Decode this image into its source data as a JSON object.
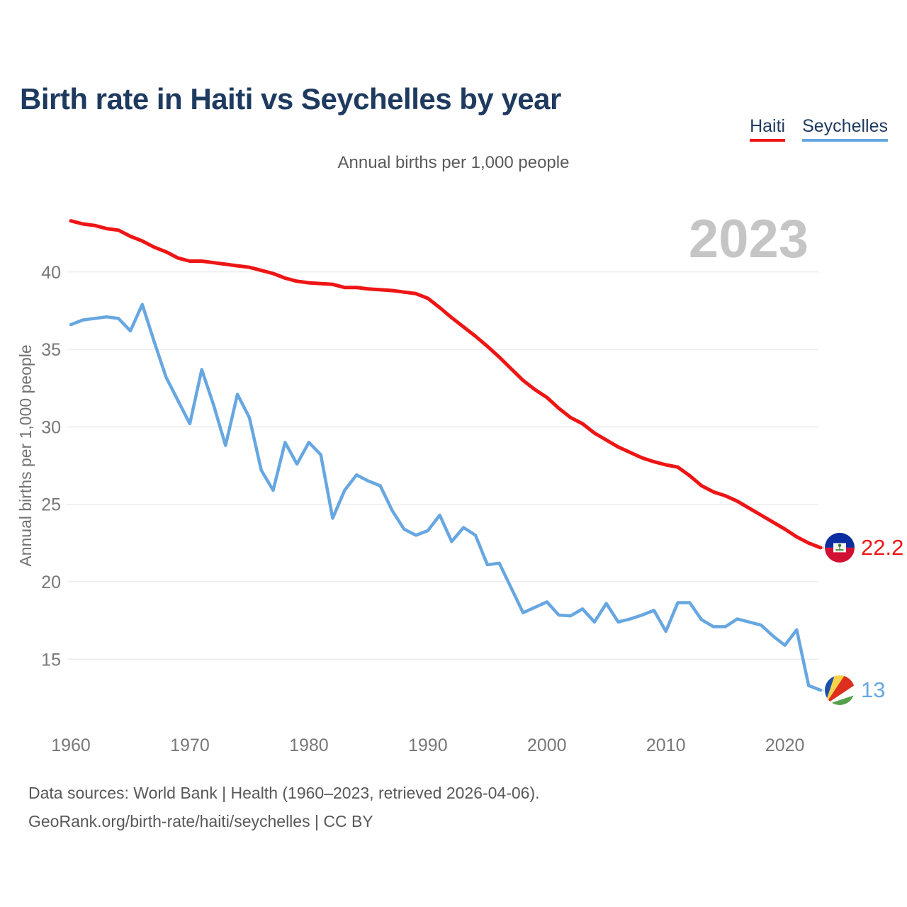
{
  "page": {
    "title": "Birth rate in Haiti vs Seychelles by year",
    "subtitle": "Annual births per 1,000 people",
    "watermark": "2023",
    "footer_line1": "Data sources: World Bank | Health (1960–2023, retrieved 2026-04-06).",
    "footer_line2": "GeoRank.org/birth-rate/haiti/seychelles | CC BY"
  },
  "legend": {
    "items": [
      {
        "label": "Haiti",
        "color": "#ee1515"
      },
      {
        "label": "Seychelles",
        "color": "#67a7e1"
      }
    ]
  },
  "chart_data": {
    "type": "line",
    "title": "Birth rate in Haiti vs Seychelles by year",
    "ylabel": "Annual births per 1,000 people",
    "xlabel": "",
    "xlim": [
      1960,
      2023
    ],
    "ylim": [
      12,
      44
    ],
    "x_ticks": [
      1960,
      1970,
      1980,
      1990,
      2000,
      2010,
      2020
    ],
    "y_ticks": [
      15,
      20,
      25,
      30,
      35,
      40
    ],
    "grid": "horizontal",
    "legend_position": "top-right",
    "x": [
      1960,
      1961,
      1962,
      1963,
      1964,
      1965,
      1966,
      1967,
      1968,
      1969,
      1970,
      1971,
      1972,
      1973,
      1974,
      1975,
      1976,
      1977,
      1978,
      1979,
      1980,
      1981,
      1982,
      1983,
      1984,
      1985,
      1986,
      1987,
      1988,
      1989,
      1990,
      1991,
      1992,
      1993,
      1994,
      1995,
      1996,
      1997,
      1998,
      1999,
      2000,
      2001,
      2002,
      2003,
      2004,
      2005,
      2006,
      2007,
      2008,
      2009,
      2010,
      2011,
      2012,
      2013,
      2014,
      2015,
      2016,
      2017,
      2018,
      2019,
      2020,
      2021,
      2022,
      2023
    ],
    "series": [
      {
        "name": "Haiti",
        "color": "#ee1515",
        "end_label": "22.2",
        "values": [
          43.3,
          43.1,
          43.0,
          42.8,
          42.7,
          42.3,
          42.0,
          41.6,
          41.3,
          40.9,
          40.7,
          40.7,
          40.6,
          40.5,
          40.4,
          40.3,
          40.1,
          39.9,
          39.6,
          39.4,
          39.3,
          39.25,
          39.2,
          39.0,
          39.0,
          38.9,
          38.85,
          38.8,
          38.7,
          38.6,
          38.3,
          37.7,
          37.05,
          36.45,
          35.85,
          35.2,
          34.5,
          33.75,
          33.0,
          32.4,
          31.9,
          31.2,
          30.6,
          30.2,
          29.6,
          29.15,
          28.7,
          28.35,
          28.0,
          27.75,
          27.55,
          27.4,
          26.85,
          26.2,
          25.8,
          25.55,
          25.2,
          24.75,
          24.3,
          23.85,
          23.4,
          22.9,
          22.5,
          22.2
        ]
      },
      {
        "name": "Seychelles",
        "color": "#67a7e1",
        "end_label": "13",
        "values": [
          36.6,
          36.9,
          37.0,
          37.1,
          37.0,
          36.2,
          37.9,
          35.5,
          33.2,
          31.7,
          30.2,
          33.7,
          31.4,
          28.8,
          32.1,
          30.6,
          27.2,
          25.9,
          29.0,
          27.6,
          29.0,
          28.2,
          24.1,
          25.9,
          26.9,
          26.5,
          26.2,
          24.6,
          23.4,
          23.0,
          23.3,
          24.3,
          22.6,
          23.5,
          23.0,
          21.1,
          21.2,
          19.6,
          18.0,
          18.35,
          18.7,
          17.85,
          17.8,
          18.25,
          17.4,
          18.6,
          17.4,
          17.6,
          17.85,
          18.15,
          16.8,
          18.65,
          18.65,
          17.55,
          17.1,
          17.1,
          17.6,
          17.4,
          17.2,
          16.5,
          15.9,
          16.9,
          13.3,
          13.0
        ]
      }
    ]
  }
}
